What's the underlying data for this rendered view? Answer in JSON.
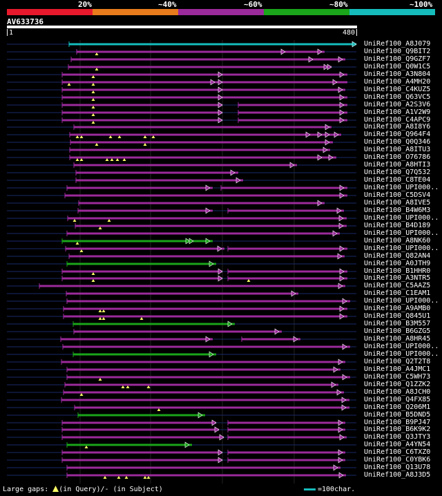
{
  "scale": {
    "labels": [
      "20%",
      "~40%",
      "~60%",
      "~80%",
      "~100%"
    ],
    "colors": [
      "#e8192c",
      "#e87b1c",
      "#9b2a9b",
      "#1aa51a",
      "#16bcbc"
    ]
  },
  "query": {
    "name": "AV633736",
    "start": "1",
    "end": "480"
  },
  "hits": [
    {
      "name": "UniRef100_A8J079",
      "color": "#16bcbc",
      "segments": [
        [
          100,
          516
        ]
      ],
      "arrows": [
        516
      ],
      "gaps": []
    },
    {
      "name": "UniRef100_Q9BIT2",
      "color": "#9b2a9b",
      "segments": [
        [
          111,
          470
        ]
      ],
      "arrows": [
        413,
        466
      ],
      "gaps": [
        140
      ]
    },
    {
      "name": "UniRef100_Q9GZF7",
      "color": "#9b2a9b",
      "segments": [
        [
          103,
          500
        ]
      ],
      "arrows": [
        453,
        496
      ],
      "gaps": []
    },
    {
      "name": "UniRef100_Q0W1C5",
      "color": "#9b2a9b",
      "segments": [
        [
          99,
          480
        ]
      ],
      "arrows": [
        475,
        480
      ],
      "gaps": [
        140
      ]
    },
    {
      "name": "UniRef100_A3N804",
      "color": "#9b2a9b",
      "segments": [
        [
          90,
          503
        ]
      ],
      "arrows": [
        322,
        498
      ],
      "gaps": [
        135
      ]
    },
    {
      "name": "UniRef100_A4MH20",
      "color": "#9b2a9b",
      "segments": [
        [
          90,
          503
        ]
      ],
      "arrows": [
        311,
        322,
        488
      ],
      "gaps": [
        100,
        135
      ]
    },
    {
      "name": "UniRef100_C4KUZ5",
      "color": "#9b2a9b",
      "segments": [
        [
          90,
          500
        ]
      ],
      "arrows": [
        322,
        496
      ],
      "gaps": [
        135
      ]
    },
    {
      "name": "UniRef100_Q63VC5",
      "color": "#9b2a9b",
      "segments": [
        [
          90,
          503
        ]
      ],
      "arrows": [
        322,
        498
      ],
      "gaps": [
        135
      ]
    },
    {
      "name": "UniRef100_A2S3V6",
      "color": "#9b2a9b",
      "segments": [
        [
          90,
          322
        ],
        [
          345,
          503
        ]
      ],
      "arrows": [
        322,
        498
      ],
      "gaps": [
        135
      ]
    },
    {
      "name": "UniRef100_A1V2W9",
      "color": "#9b2a9b",
      "segments": [
        [
          90,
          322
        ],
        [
          345,
          503
        ]
      ],
      "arrows": [
        322,
        498
      ],
      "gaps": [
        135
      ]
    },
    {
      "name": "UniRef100_C4APC9",
      "color": "#9b2a9b",
      "segments": [
        [
          90,
          322
        ],
        [
          345,
          503
        ]
      ],
      "arrows": [
        322,
        498
      ],
      "gaps": [
        135
      ]
    },
    {
      "name": "UniRef100_A8I8Y6",
      "color": "#9b2a9b",
      "segments": [
        [
          107,
          480
        ]
      ],
      "arrows": [
        477
      ],
      "gaps": []
    },
    {
      "name": "UniRef100_Q964F4",
      "color": "#9b2a9b",
      "segments": [
        [
          101,
          494
        ]
      ],
      "arrows": [
        449,
        466,
        477,
        490
      ],
      "gaps": [
        112,
        118,
        160,
        173,
        210,
        222
      ]
    },
    {
      "name": "UniRef100_Q0Q346",
      "color": "#9b2a9b",
      "segments": [
        [
          102,
          482
        ]
      ],
      "arrows": [
        477
      ],
      "gaps": [
        140,
        210
      ]
    },
    {
      "name": "UniRef100_A8ITU3",
      "color": "#9b2a9b",
      "segments": [
        [
          101,
          478
        ]
      ],
      "arrows": [
        474
      ],
      "gaps": []
    },
    {
      "name": "UniRef100_O76786",
      "color": "#9b2a9b",
      "segments": [
        [
          101,
          487
        ]
      ],
      "arrows": [
        466,
        482
      ],
      "gaps": [
        112,
        118,
        155,
        162,
        170,
        180
      ]
    },
    {
      "name": "UniRef100_A8HTI3",
      "color": "#9b2a9b",
      "segments": [
        [
          107,
          430
        ]
      ],
      "arrows": [
        426
      ],
      "gaps": []
    },
    {
      "name": "UniRef100_Q7Q532",
      "color": "#9b2a9b",
      "segments": [
        [
          110,
          345
        ]
      ],
      "arrows": [
        340
      ],
      "gaps": []
    },
    {
      "name": "UniRef100_C8TE04",
      "color": "#9b2a9b",
      "segments": [
        [
          110,
          352
        ]
      ],
      "arrows": [
        348
      ],
      "gaps": []
    },
    {
      "name": "UniRef100_UPI000..",
      "color": "#9b2a9b",
      "segments": [
        [
          97,
          308
        ],
        [
          320,
          503
        ]
      ],
      "arrows": [
        304,
        498
      ],
      "gaps": []
    },
    {
      "name": "UniRef100_C5DSV4",
      "color": "#9b2a9b",
      "segments": [
        [
          94,
          503
        ]
      ],
      "arrows": [
        498
      ],
      "gaps": []
    },
    {
      "name": "UniRef100_A8IVE5",
      "color": "#9b2a9b",
      "segments": [
        [
          114,
          470
        ]
      ],
      "arrows": [
        466
      ],
      "gaps": []
    },
    {
      "name": "UniRef100_B4W6M3",
      "color": "#9b2a9b",
      "segments": [
        [
          113,
          308
        ],
        [
          330,
          498
        ]
      ],
      "arrows": [
        304,
        494
      ],
      "gaps": []
    },
    {
      "name": "UniRef100_UPI000..",
      "color": "#9b2a9b",
      "segments": [
        [
          98,
          502
        ]
      ],
      "arrows": [
        497
      ],
      "gaps": [
        108,
        158
      ]
    },
    {
      "name": "UniRef100_B4D189",
      "color": "#9b2a9b",
      "segments": [
        [
          109,
          502
        ]
      ],
      "arrows": [
        497
      ],
      "gaps": [
        145
      ]
    },
    {
      "name": "UniRef100_UPI000..",
      "color": "#9b2a9b",
      "segments": [
        [
          97,
          492
        ]
      ],
      "arrows": [
        488
      ],
      "gaps": []
    },
    {
      "name": "UniRef100_A8NK60",
      "color": "#1aa51a",
      "segments": [
        [
          90,
          308
        ]
      ],
      "arrows": [
        275,
        280,
        304
      ],
      "gaps": [
        112
      ]
    },
    {
      "name": "UniRef100_UPI000..",
      "color": "#9b2a9b",
      "segments": [
        [
          95,
          325
        ],
        [
          330,
          503
        ]
      ],
      "arrows": [
        321,
        498
      ],
      "gaps": [
        118
      ]
    },
    {
      "name": "UniRef100_Q82AN4",
      "color": "#9b2a9b",
      "segments": [
        [
          100,
          499
        ]
      ],
      "arrows": [
        495
      ],
      "gaps": []
    },
    {
      "name": "UniRef100_A0JTH9",
      "color": "#1aa51a",
      "segments": [
        [
          97,
          313
        ]
      ],
      "arrows": [
        309
      ],
      "gaps": []
    },
    {
      "name": "UniRef100_B1HHR0",
      "color": "#9b2a9b",
      "segments": [
        [
          90,
          322
        ],
        [
          330,
          503
        ]
      ],
      "arrows": [
        322,
        498
      ],
      "gaps": [
        135
      ]
    },
    {
      "name": "UniRef100_A3NTR5",
      "color": "#9b2a9b",
      "segments": [
        [
          90,
          322
        ],
        [
          330,
          503
        ]
      ],
      "arrows": [
        322,
        498
      ],
      "gaps": [
        135,
        360
      ]
    },
    {
      "name": "UniRef100_C5AAZ5",
      "color": "#9b2a9b",
      "segments": [
        [
          57,
          500
        ]
      ],
      "arrows": [
        496
      ],
      "gaps": []
    },
    {
      "name": "UniRef100_C1EAM1",
      "color": "#9b2a9b",
      "segments": [
        [
          96,
          432
        ]
      ],
      "arrows": [
        428
      ],
      "gaps": []
    },
    {
      "name": "UniRef100_UPI000..",
      "color": "#9b2a9b",
      "segments": [
        [
          97,
          507
        ]
      ],
      "arrows": [
        502
      ],
      "gaps": []
    },
    {
      "name": "UniRef100_A9AMB0",
      "color": "#9b2a9b",
      "segments": [
        [
          92,
          503
        ]
      ],
      "arrows": [
        498
      ],
      "gaps": [
        145,
        150
      ]
    },
    {
      "name": "UniRef100_Q845U1",
      "color": "#9b2a9b",
      "segments": [
        [
          92,
          503
        ]
      ],
      "arrows": [
        498
      ],
      "gaps": [
        145,
        150,
        205
      ]
    },
    {
      "name": "UniRef100_B3M557",
      "color": "#1aa51a",
      "segments": [
        [
          106,
          340
        ]
      ],
      "arrows": [
        336
      ],
      "gaps": []
    },
    {
      "name": "UniRef100_B6GZG5",
      "color": "#9b2a9b",
      "segments": [
        [
          107,
          408
        ]
      ],
      "arrows": [
        404
      ],
      "gaps": []
    },
    {
      "name": "UniRef100_A8HR45",
      "color": "#9b2a9b",
      "segments": [
        [
          88,
          308
        ],
        [
          350,
          435
        ]
      ],
      "arrows": [
        304,
        431
      ],
      "gaps": []
    },
    {
      "name": "UniRef100_UPI000..",
      "color": "#9b2a9b",
      "segments": [
        [
          91,
          507
        ]
      ],
      "arrows": [
        502
      ],
      "gaps": []
    },
    {
      "name": "UniRef100_UPI000..",
      "color": "#1aa51a",
      "segments": [
        [
          106,
          313
        ]
      ],
      "arrows": [
        309
      ],
      "gaps": []
    },
    {
      "name": "UniRef100_Q2T2T8",
      "color": "#9b2a9b",
      "segments": [
        [
          89,
          500
        ]
      ],
      "arrows": [
        496
      ],
      "gaps": []
    },
    {
      "name": "UniRef100_A4JMC1",
      "color": "#9b2a9b",
      "segments": [
        [
          97,
          493
        ]
      ],
      "arrows": [
        489
      ],
      "gaps": []
    },
    {
      "name": "UniRef100_C5WH73",
      "color": "#9b2a9b",
      "segments": [
        [
          97,
          507
        ]
      ],
      "arrows": [
        502
      ],
      "gaps": [
        145
      ]
    },
    {
      "name": "UniRef100_Q1ZZK2",
      "color": "#9b2a9b",
      "segments": [
        [
          94,
          490
        ]
      ],
      "arrows": [
        486
      ],
      "gaps": [
        178,
        185,
        215
      ]
    },
    {
      "name": "UniRef100_A8JCH0",
      "color": "#9b2a9b",
      "segments": [
        [
          92,
          498
        ]
      ],
      "arrows": [
        494
      ],
      "gaps": [
        118
      ]
    },
    {
      "name": "UniRef100_Q4FX85",
      "color": "#9b2a9b",
      "segments": [
        [
          89,
          506
        ]
      ],
      "arrows": [
        501
      ],
      "gaps": []
    },
    {
      "name": "UniRef100_Q206M1",
      "color": "#9b2a9b",
      "segments": [
        [
          108,
          506
        ]
      ],
      "arrows": [
        501
      ],
      "gaps": [
        230
      ]
    },
    {
      "name": "UniRef100_B5DND5",
      "color": "#1aa51a",
      "segments": [
        [
          113,
          297
        ]
      ],
      "arrows": [
        293
      ],
      "gaps": []
    },
    {
      "name": "UniRef100_B9PJ47",
      "color": "#9b2a9b",
      "segments": [
        [
          90,
          313
        ],
        [
          330,
          500
        ]
      ],
      "arrows": [
        313,
        496
      ],
      "gaps": []
    },
    {
      "name": "UniRef100_B6K9K2",
      "color": "#9b2a9b",
      "segments": [
        [
          90,
          317
        ],
        [
          330,
          500
        ]
      ],
      "arrows": [
        317,
        496
      ],
      "gaps": []
    },
    {
      "name": "UniRef100_Q3JTY3",
      "color": "#9b2a9b",
      "segments": [
        [
          90,
          324
        ],
        [
          330,
          502
        ]
      ],
      "arrows": [
        324,
        498
      ],
      "gaps": []
    },
    {
      "name": "UniRef100_A4YN54",
      "color": "#1aa51a",
      "segments": [
        [
          97,
          278
        ]
      ],
      "arrows": [
        274
      ],
      "gaps": [
        125
      ]
    },
    {
      "name": "UniRef100_C6TXZ0",
      "color": "#9b2a9b",
      "segments": [
        [
          90,
          322
        ],
        [
          330,
          500
        ]
      ],
      "arrows": [
        322,
        496
      ],
      "gaps": []
    },
    {
      "name": "UniRef100_C0YBK6",
      "color": "#9b2a9b",
      "segments": [
        [
          90,
          322
        ],
        [
          330,
          500
        ]
      ],
      "arrows": [
        322,
        496
      ],
      "gaps": []
    },
    {
      "name": "UniRef100_Q13U78",
      "color": "#9b2a9b",
      "segments": [
        [
          97,
          493
        ]
      ],
      "arrows": [
        489
      ],
      "gaps": []
    },
    {
      "name": "UniRef100_A8J3D5",
      "color": "#9b2a9b",
      "segments": [
        [
          97,
          501
        ]
      ],
      "arrows": [
        497
      ],
      "gaps": [
        152,
        172,
        183,
        210,
        215
      ]
    }
  ],
  "footer": {
    "gaps_label": "Large gaps:",
    "gaps_query_text": "(in Query)/",
    "gaps_subject_text": "- (in Subject)",
    "legend_text": "=100char.",
    "legend_color": "#16bcbc"
  }
}
